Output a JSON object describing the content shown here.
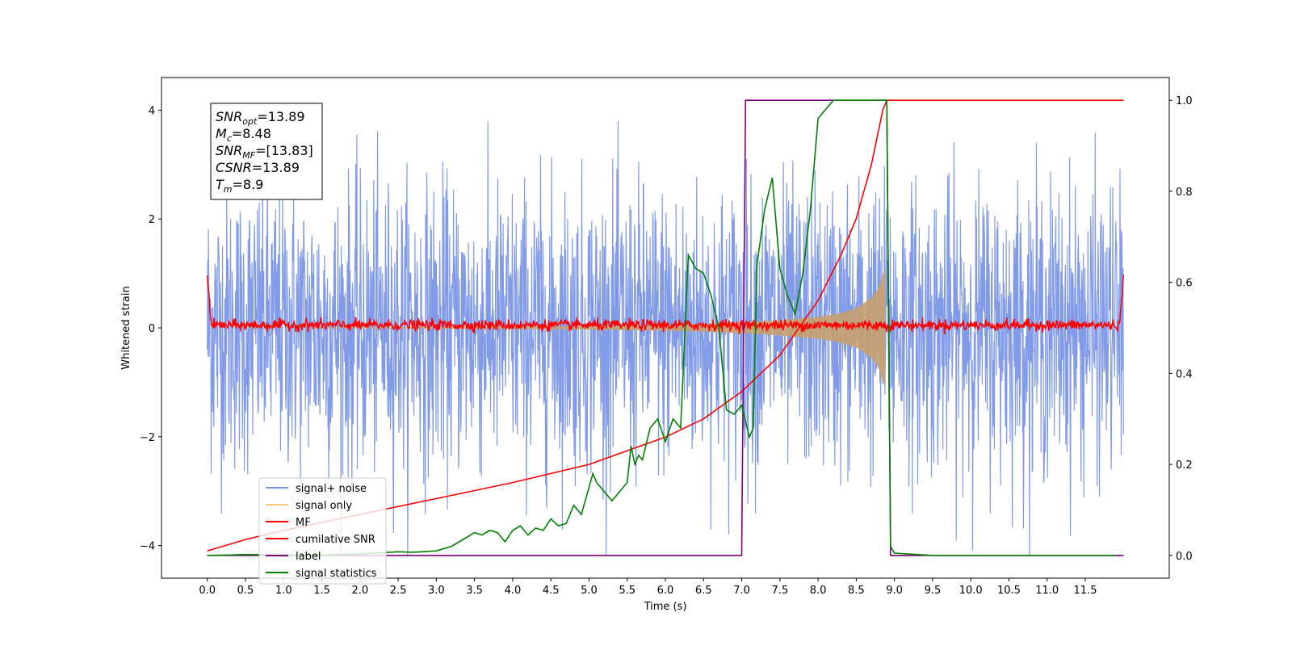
{
  "chart_data": {
    "type": "line",
    "title": "",
    "xlabel": "Time (s)",
    "ylabel": "Whitened strain",
    "ylabel_right": "",
    "xlim": [
      -0.6,
      12.6
    ],
    "ylim": [
      -4.6,
      4.6
    ],
    "ylim_right": [
      -0.05,
      1.05
    ],
    "x_ticks": [
      0.0,
      0.5,
      1.0,
      1.5,
      2.0,
      2.5,
      3.0,
      3.5,
      4.0,
      4.5,
      5.0,
      5.5,
      6.0,
      6.5,
      7.0,
      7.5,
      8.0,
      8.5,
      9.0,
      9.5,
      10.0,
      10.5,
      11.0,
      11.5
    ],
    "x_tick_labels": [
      "0.0",
      "0.5",
      "1.0",
      "1.5",
      "2.0",
      "2.5",
      "3.0",
      "3.5",
      "4.0",
      "4.5",
      "5.0",
      "5.5",
      "6.0",
      "6.5",
      "7.0",
      "7.5",
      "8.0",
      "8.5",
      "9.0",
      "9.5",
      "10.0",
      "10.5",
      "11.0",
      "11.5"
    ],
    "y_ticks": [
      -4,
      -2,
      0,
      2,
      4
    ],
    "y_tick_labels": [
      "−4",
      "−2",
      "0",
      "2",
      "4"
    ],
    "y_ticks_right": [
      0.0,
      0.2,
      0.4,
      0.6,
      0.8,
      1.0
    ],
    "y_tick_labels_right": [
      "0.0",
      "0.2",
      "0.4",
      "0.6",
      "0.8",
      "1.0"
    ],
    "grid": false,
    "legend_position": "bottom-left",
    "annotation": {
      "lines": [
        {
          "main": "SNR",
          "sub": "opt",
          "rest": "=13.89"
        },
        {
          "main": "M",
          "sub": "c",
          "rest": "=8.48"
        },
        {
          "main": "SNR",
          "sub": "MF",
          "rest": "=[13.83]"
        },
        {
          "main": "CSNR",
          "sub": "",
          "rest": "=13.89"
        },
        {
          "main": "T",
          "sub": "m",
          "rest": "=8.9"
        }
      ]
    },
    "noise_envelope": {
      "x": [
        0.0,
        1.0,
        2.0,
        3.0,
        4.0,
        5.0,
        6.0,
        7.0,
        8.0,
        9.0,
        10.0,
        11.0,
        12.0
      ],
      "peak_max": 3.8,
      "peak_min": -4.2,
      "typical_spread": 2.5
    },
    "series": [
      {
        "name": "signal+ noise",
        "axis": "left",
        "color": "#7b96e8",
        "style": "noise"
      },
      {
        "name": "signal only",
        "axis": "left",
        "color": "#f5c97a",
        "style": "chirp",
        "x": [
          0.0,
          4.0,
          5.0,
          6.0,
          6.5,
          7.0,
          7.5,
          8.0,
          8.3,
          8.5,
          8.7,
          8.8,
          8.85,
          8.88
        ],
        "y_amplitude": [
          0.0,
          0.02,
          0.03,
          0.05,
          0.07,
          0.1,
          0.14,
          0.2,
          0.27,
          0.36,
          0.55,
          0.75,
          1.0,
          1.1
        ]
      },
      {
        "name": "MF",
        "axis": "left",
        "color": "#ff0000",
        "style": "mf",
        "x": [
          0.0,
          0.05,
          11.95,
          12.0
        ],
        "y": [
          1.0,
          0.05,
          0.05,
          0.9
        ],
        "noise_amplitude": 0.09
      },
      {
        "name": "cumilative SNR",
        "axis": "right",
        "color": "#ff0000",
        "style": "line",
        "x": [
          0.0,
          0.1,
          0.5,
          1.0,
          2.0,
          3.0,
          4.0,
          5.0,
          6.0,
          6.5,
          7.0,
          7.5,
          8.0,
          8.3,
          8.5,
          8.7,
          8.8,
          8.85,
          8.9,
          12.0
        ],
        "y": [
          0.01,
          0.015,
          0.035,
          0.055,
          0.09,
          0.125,
          0.16,
          0.2,
          0.26,
          0.3,
          0.36,
          0.44,
          0.56,
          0.66,
          0.74,
          0.86,
          0.94,
          0.98,
          1.0,
          1.0
        ]
      },
      {
        "name": "label",
        "axis": "right",
        "color": "#800080",
        "style": "line",
        "x": [
          0.0,
          7.0,
          7.05,
          8.9,
          8.95,
          12.0
        ],
        "y": [
          0.0,
          0.0,
          1.0,
          1.0,
          0.0,
          0.0
        ]
      },
      {
        "name": "signal statistics",
        "axis": "right",
        "color": "#008000",
        "style": "line",
        "x": [
          0.0,
          0.3,
          0.5,
          1.0,
          1.5,
          2.0,
          2.5,
          2.7,
          3.0,
          3.2,
          3.4,
          3.5,
          3.6,
          3.7,
          3.8,
          3.9,
          4.0,
          4.1,
          4.2,
          4.3,
          4.4,
          4.5,
          4.6,
          4.7,
          4.8,
          4.9,
          5.0,
          5.05,
          5.1,
          5.2,
          5.3,
          5.4,
          5.5,
          5.55,
          5.6,
          5.65,
          5.7,
          5.8,
          5.9,
          6.0,
          6.1,
          6.2,
          6.3,
          6.4,
          6.5,
          6.6,
          6.7,
          6.8,
          6.9,
          7.0,
          7.1,
          7.15,
          7.2,
          7.3,
          7.4,
          7.5,
          7.6,
          7.7,
          7.8,
          7.9,
          8.0,
          8.2,
          8.4,
          8.6,
          8.8,
          8.9,
          8.95,
          9.0,
          9.5,
          10.0,
          11.0,
          11.9
        ],
        "y": [
          0.0,
          0.001,
          0.002,
          0.001,
          0.001,
          0.003,
          0.008,
          0.007,
          0.01,
          0.02,
          0.04,
          0.05,
          0.045,
          0.055,
          0.05,
          0.03,
          0.055,
          0.065,
          0.045,
          0.06,
          0.055,
          0.08,
          0.065,
          0.07,
          0.11,
          0.09,
          0.15,
          0.18,
          0.16,
          0.14,
          0.12,
          0.14,
          0.16,
          0.24,
          0.2,
          0.22,
          0.21,
          0.28,
          0.3,
          0.25,
          0.3,
          0.28,
          0.66,
          0.63,
          0.62,
          0.57,
          0.5,
          0.32,
          0.31,
          0.33,
          0.26,
          0.28,
          0.64,
          0.76,
          0.83,
          0.63,
          0.57,
          0.53,
          0.62,
          0.76,
          0.96,
          1.0,
          1.0,
          1.0,
          1.0,
          1.0,
          0.02,
          0.005,
          0.0,
          0.0,
          0.0,
          0.0
        ]
      }
    ]
  }
}
